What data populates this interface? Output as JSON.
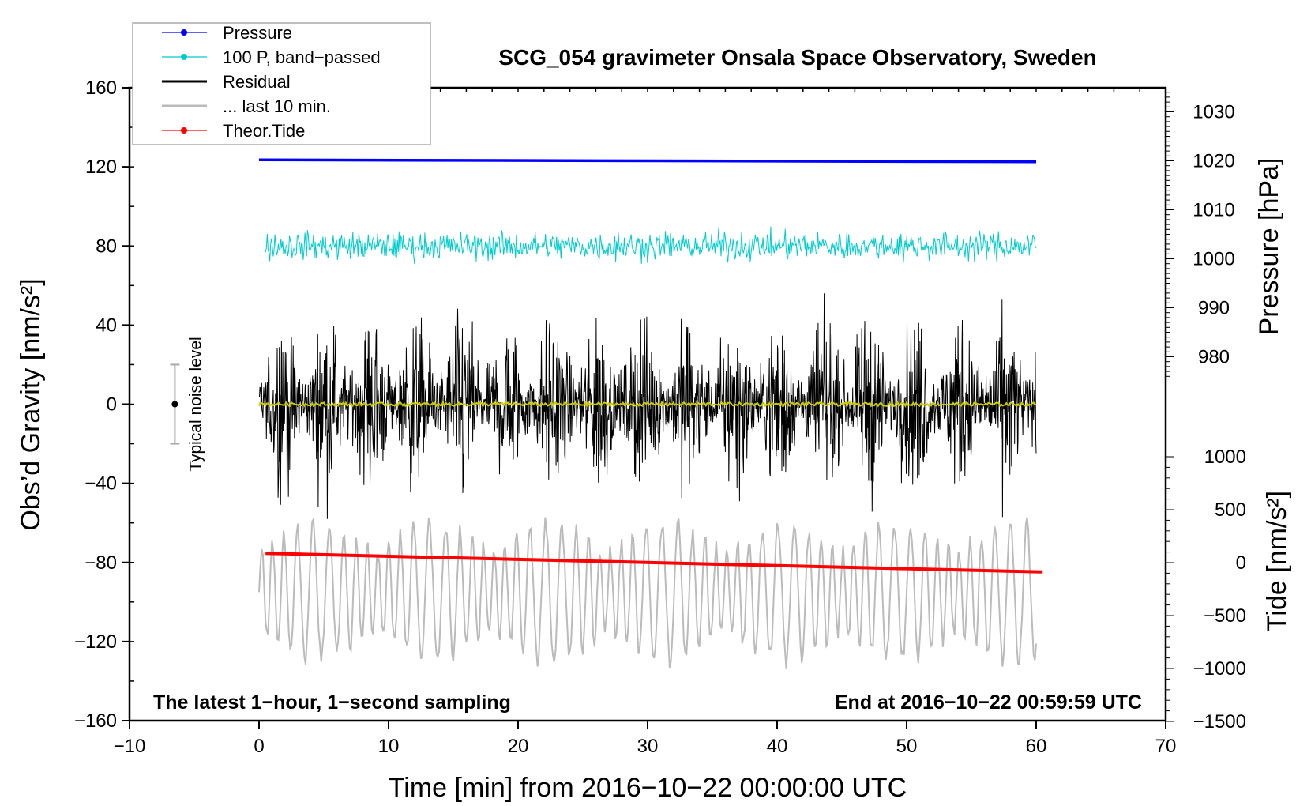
{
  "chart_data": {
    "type": "line",
    "title": "SCG_054 gravimeter Onsala Space Observatory, Sweden",
    "xlabel": "Time [min] from 2016−10−22 00:00:00 UTC",
    "ylabel": "Obs’d Gravity [nm/s²]",
    "ylabel_right_top": "Pressure [hPa]",
    "ylabel_right_bottom": "Tide [nm/s²]",
    "xlim": [
      -10,
      70
    ],
    "ylim": [
      -160,
      160
    ],
    "pressure_axis_range": [
      975,
      1034
    ],
    "tide_axis_range": [
      -1500,
      1050
    ],
    "x_ticks": [
      "−10",
      "0",
      "10",
      "20",
      "30",
      "40",
      "50",
      "60",
      "70"
    ],
    "x_tick_values": [
      -10,
      0,
      10,
      20,
      30,
      40,
      50,
      60,
      70
    ],
    "y_ticks": [
      "−160",
      "−120",
      "−80",
      "−40",
      "0",
      "40",
      "80",
      "120",
      "160"
    ],
    "y_tick_values": [
      -160,
      -120,
      -80,
      -40,
      0,
      40,
      80,
      120,
      160
    ],
    "pressure_ticks": [
      "1030",
      "1020",
      "1010",
      "1000",
      "990",
      "980"
    ],
    "pressure_tick_values": [
      1030,
      1020,
      1010,
      1000,
      990,
      980
    ],
    "tide_ticks": [
      "1000",
      "500",
      "0",
      "−500",
      "−1000",
      "−1500"
    ],
    "tide_tick_values": [
      1000,
      500,
      0,
      -500,
      -1000,
      -1500
    ],
    "legend": {
      "placement": "top-left",
      "entries": [
        {
          "label": "Pressure",
          "color": "#0000ff",
          "marker": true
        },
        {
          "label": "100 P, band−passed",
          "color": "#00cccc",
          "marker": true
        },
        {
          "label": "Residual",
          "color": "#000000",
          "marker": false
        },
        {
          "label": "... last 10 min.",
          "color": "#bbbbbb",
          "marker": false
        },
        {
          "label": "Theor.Tide",
          "color": "#ff0000",
          "marker": true
        }
      ]
    },
    "series": [
      {
        "name": "Pressure",
        "axis": "pressure",
        "x_range": [
          0,
          60
        ],
        "start": 1020.2,
        "end": 1019.8,
        "color": "#0000ff"
      },
      {
        "name": "100 P, band-passed",
        "axis": "left",
        "x_range": [
          0,
          60
        ],
        "mean": 80,
        "amplitude": 10,
        "color": "#00cccc"
      },
      {
        "name": "Residual",
        "axis": "left",
        "x_range": [
          0,
          60
        ],
        "mean": 0,
        "amplitude": 50,
        "color": "#000000"
      },
      {
        "name": "Residual smoothed",
        "axis": "left",
        "x_range": [
          0,
          60
        ],
        "mean": 0,
        "amplitude": 1.5,
        "color": "#cccc00"
      },
      {
        "name": "... last 10 min.",
        "axis": "left",
        "x_range": [
          0,
          60
        ],
        "mean": -95,
        "amplitude": 30,
        "color": "#bbbbbb"
      },
      {
        "name": "Theor.Tide",
        "axis": "tide",
        "x_range": [
          0,
          60.5
        ],
        "start": 88,
        "end": -88,
        "color": "#ff0000"
      }
    ],
    "noise_bar": {
      "label": "Typical noise level",
      "x": -6.5,
      "center": 0,
      "half_range": 20
    },
    "annotations": {
      "left": "The latest 1−hour, 1−second sampling",
      "right": "End at 2016−10−22 00:59:59 UTC"
    }
  }
}
